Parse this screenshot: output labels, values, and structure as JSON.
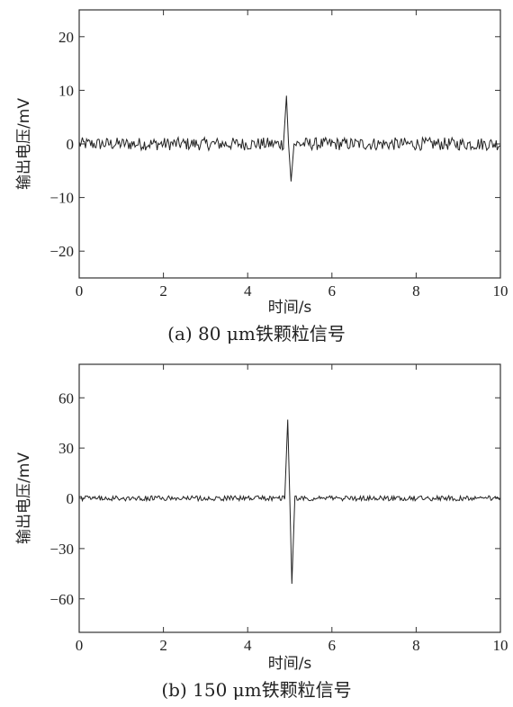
{
  "chart_data": [
    {
      "type": "line",
      "caption": "(a)  80 μm铁颗粒信号",
      "xlabel": "时间/s",
      "ylabel": "输出电压/mV",
      "xlim": [
        0,
        10
      ],
      "ylim": [
        -25,
        25
      ],
      "xticks": [
        0,
        2,
        4,
        6,
        8,
        10
      ],
      "yticks": [
        20,
        10,
        0,
        -10,
        -20
      ],
      "ytick_labels": [
        "20",
        "10",
        "0",
        "−10",
        "−20"
      ],
      "grid": false,
      "noise_amplitude": 1.2,
      "peak": {
        "x": [
          4.85,
          4.92,
          4.97,
          5.03,
          5.1
        ],
        "y": [
          0,
          9,
          0,
          -7,
          0
        ]
      }
    },
    {
      "type": "line",
      "caption": "(b)  150 μm铁颗粒信号",
      "xlabel": "时间/s",
      "ylabel": "输出电压/mV",
      "xlim": [
        0,
        10
      ],
      "ylim": [
        -80,
        80
      ],
      "xticks": [
        0,
        2,
        4,
        6,
        8,
        10
      ],
      "yticks": [
        60,
        30,
        0,
        -30,
        -60
      ],
      "ytick_labels": [
        "60",
        "30",
        "0",
        "−30",
        "−60"
      ],
      "grid": false,
      "noise_amplitude": 1.5,
      "peak": {
        "x": [
          4.88,
          4.95,
          5.0,
          5.05,
          5.12
        ],
        "y": [
          0,
          47,
          0,
          -51,
          0
        ]
      }
    }
  ]
}
